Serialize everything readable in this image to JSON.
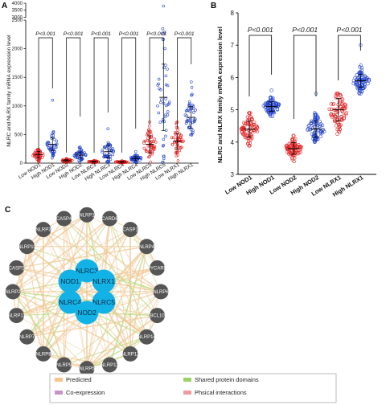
{
  "panels": {
    "a": "A",
    "b": "B",
    "c": "C"
  },
  "chart_data": [
    {
      "type": "scatter",
      "panel": "A",
      "ylabel": "NLRC and NLRX family mRNA expression level",
      "y_ticks_lower": [
        0,
        500,
        1000,
        1500,
        2000,
        2500
      ],
      "y_ticks_upper": [
        3000,
        3500,
        4000
      ],
      "colors": {
        "low": "#e02020",
        "high": "#1f3fc8"
      },
      "groups": [
        {
          "label": "Low NOD1",
          "level": "low",
          "mean": 150,
          "sd": 55,
          "max": 240
        },
        {
          "label": "High NOD1",
          "level": "high",
          "mean": 330,
          "sd": 110,
          "max": 1100
        },
        {
          "label": "Low NOD2",
          "level": "low",
          "mean": 45,
          "sd": 15,
          "max": 80
        },
        {
          "label": "High NOD2",
          "level": "high",
          "mean": 140,
          "sd": 55,
          "max": 280
        },
        {
          "label": "Low NLRC3",
          "level": "low",
          "mean": 25,
          "sd": 10,
          "max": 45
        },
        {
          "label": "High NLRC3",
          "level": "high",
          "mean": 200,
          "sd": 110,
          "max": 600
        },
        {
          "label": "Low NLRC4",
          "level": "low",
          "mean": 20,
          "sd": 8,
          "max": 40
        },
        {
          "label": "High NLRC4",
          "level": "high",
          "mean": 80,
          "sd": 35,
          "max": 200
        },
        {
          "label": "Low NLRC5",
          "level": "low",
          "mean": 330,
          "sd": 150,
          "max": 720
        },
        {
          "label": "High NLRC5",
          "level": "high",
          "mean": 1150,
          "sd": 580,
          "max": 3800
        },
        {
          "label": "Low NLRX1",
          "level": "low",
          "mean": 380,
          "sd": 140,
          "max": 720
        },
        {
          "label": "High NLRX1",
          "level": "high",
          "mean": 800,
          "sd": 190,
          "max": 1420
        }
      ],
      "pvalues": [
        "P<0.001",
        "P<0.001",
        "P<0.001",
        "P<0.001",
        "P<0.001",
        "P<0.001"
      ]
    },
    {
      "type": "scatter",
      "panel": "B",
      "ylabel": "NLRC and NLRX family mRNA expression level",
      "ylim": [
        3,
        8
      ],
      "y_ticks": [
        3,
        4,
        5,
        6,
        7,
        8
      ],
      "colors": {
        "low": "#e02020",
        "high": "#1f3fc8"
      },
      "groups": [
        {
          "label": "Low NOD1",
          "level": "low",
          "mean": 4.4,
          "sd": 0.25,
          "min": 3.8,
          "max": 4.9
        },
        {
          "label": "High  NOD1",
          "level": "high",
          "mean": 5.1,
          "sd": 0.15,
          "min": 4.8,
          "max": 5.6
        },
        {
          "label": "Low NOD2",
          "level": "low",
          "mean": 3.8,
          "sd": 0.18,
          "min": 3.4,
          "max": 4.2
        },
        {
          "label": "High NOD2",
          "level": "high",
          "mean": 4.4,
          "sd": 0.25,
          "min": 4.0,
          "max": 5.5
        },
        {
          "label": "Low NLRX1",
          "level": "low",
          "mean": 5.0,
          "sd": 0.35,
          "min": 3.8,
          "max": 5.5
        },
        {
          "label": "High NLRX1",
          "level": "high",
          "mean": 5.9,
          "sd": 0.2,
          "min": 5.5,
          "max": 7.0
        }
      ],
      "pvalues": [
        "P<0.001",
        "P<0.001",
        "P<0.001"
      ]
    }
  ],
  "network": {
    "center_nodes": [
      "NLRC3",
      "NOD1",
      "NLRX1",
      "NLRC4",
      "NLRC5",
      "NOD2"
    ],
    "outer_nodes": [
      "NLRP1",
      "CARD6",
      "CASP1",
      "NLRP4",
      "PYCARD",
      "NLRP6",
      "BCL10",
      "NLRP14",
      "NLRP12",
      "NLRP13",
      "NLRP5",
      "NLRP9",
      "NLRP8",
      "NLRP7",
      "NLRP11",
      "NLRP2",
      "CASP2",
      "NLRP10",
      "NLRP3",
      "CASP4"
    ],
    "colors": {
      "center": "#12b2e6",
      "outer": "#555555",
      "predicted": "#f2c896",
      "shared": "#b6d87a"
    },
    "legend": [
      {
        "label": "Predicted",
        "color": "#f7c48a"
      },
      {
        "label": "Shared protein domains",
        "color": "#9bd36a"
      },
      {
        "label": "Co-expression",
        "color": "#c693c9"
      },
      {
        "label": "Phsical interactions",
        "color": "#ef9aa0"
      }
    ]
  }
}
